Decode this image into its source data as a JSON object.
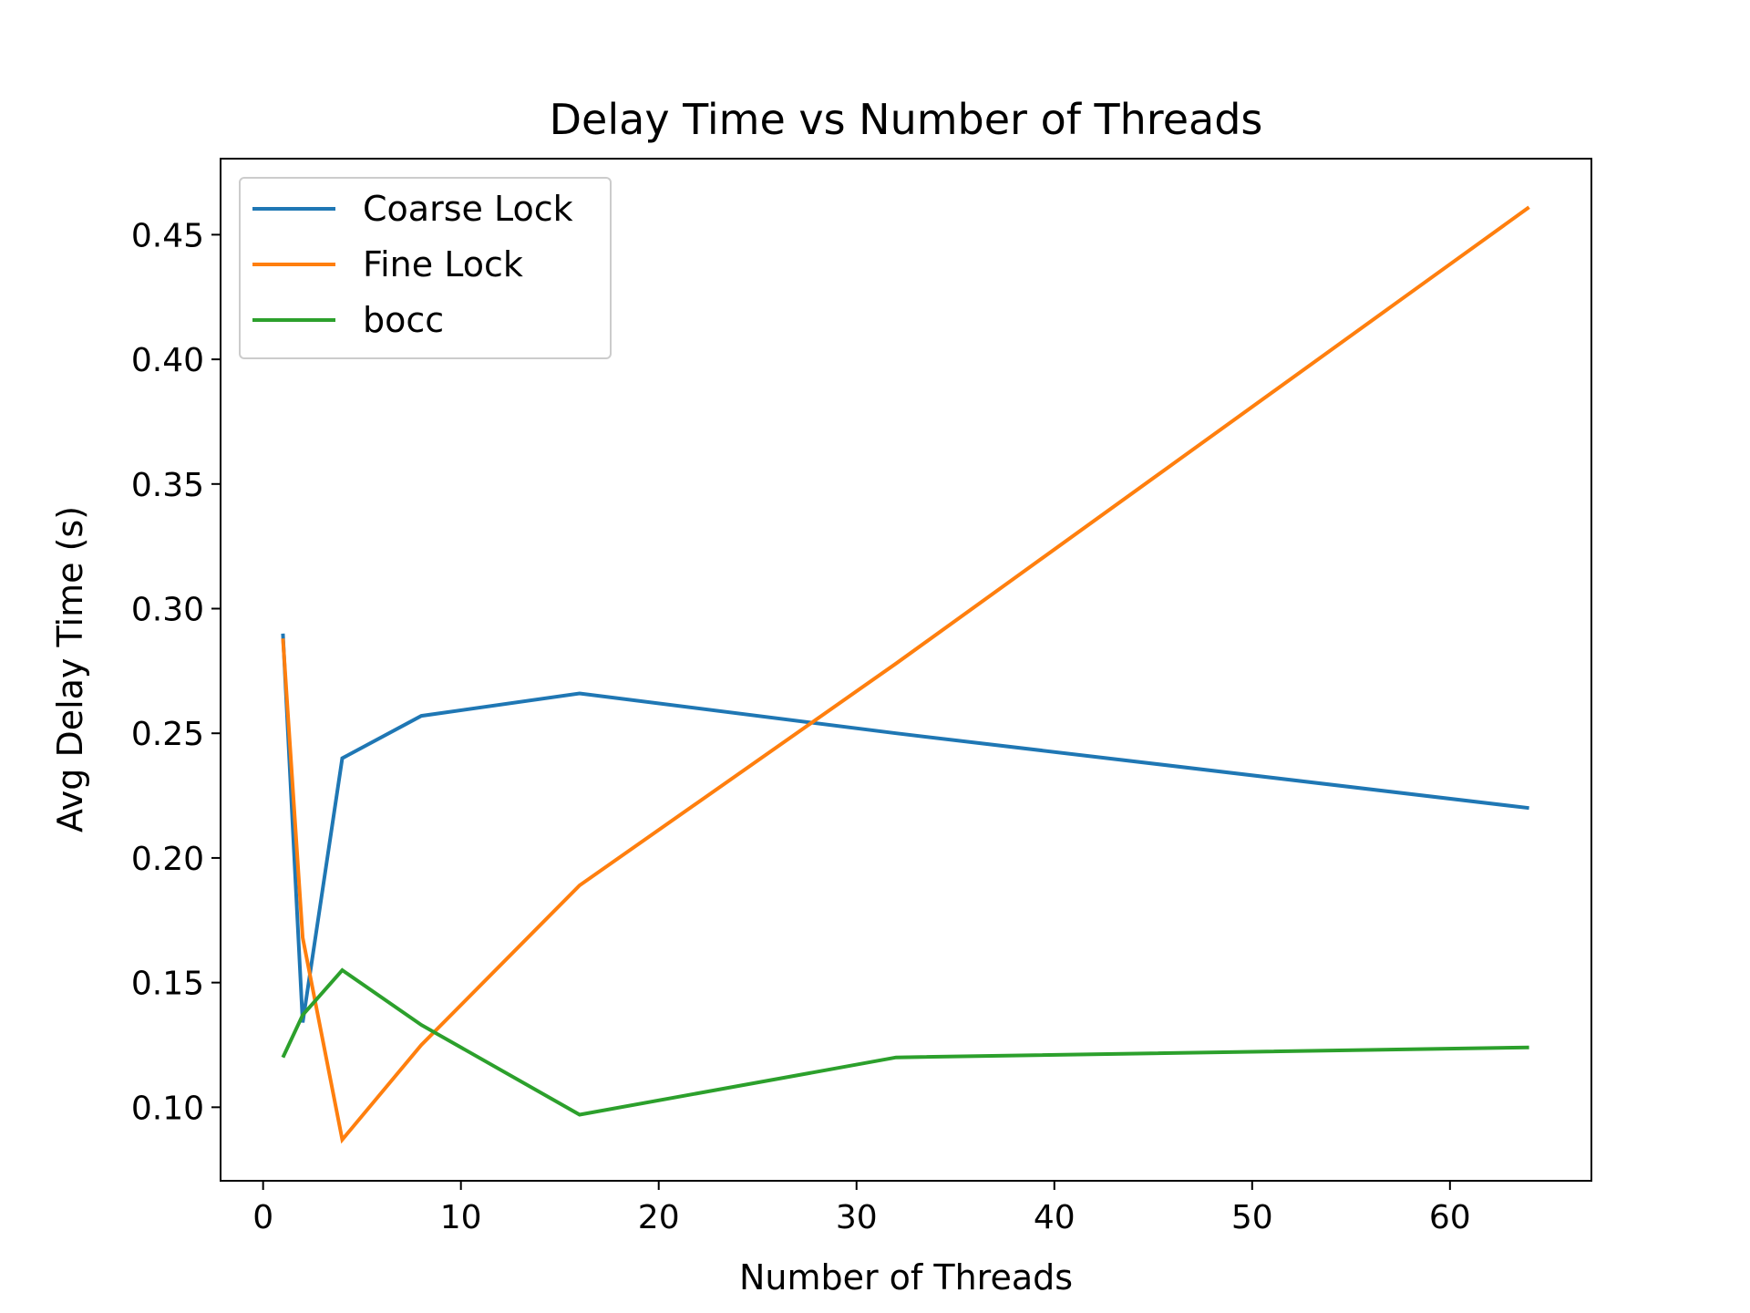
{
  "chart_data": {
    "type": "line",
    "title": "Delay Time vs Number of Threads",
    "xlabel": "Number of Threads",
    "ylabel": "Avg Delay Time (s)",
    "xlim": [
      -2.15,
      67.15
    ],
    "ylim": [
      0.0705,
      0.4805
    ],
    "xticks": [
      0,
      10,
      20,
      30,
      40,
      50,
      60
    ],
    "yticks": [
      0.1,
      0.15,
      0.2,
      0.25,
      0.3,
      0.35,
      0.4,
      0.45
    ],
    "xtick_labels": [
      "0",
      "10",
      "20",
      "30",
      "40",
      "50",
      "60"
    ],
    "ytick_labels": [
      "0.10",
      "0.15",
      "0.20",
      "0.25",
      "0.30",
      "0.35",
      "0.40",
      "0.45"
    ],
    "grid": false,
    "legend_position": "top-left",
    "x": [
      1,
      2,
      4,
      8,
      16,
      32,
      64
    ],
    "series": [
      {
        "name": "Coarse Lock",
        "color": "#1f77b4",
        "values": [
          0.29,
          0.134,
          0.24,
          0.257,
          0.266,
          0.25,
          0.22
        ]
      },
      {
        "name": "Fine Lock",
        "color": "#ff7f0e",
        "values": [
          0.288,
          0.168,
          0.087,
          0.125,
          0.189,
          0.278,
          0.461
        ]
      },
      {
        "name": "bocc",
        "color": "#2ca02c",
        "values": [
          0.12,
          0.137,
          0.155,
          0.133,
          0.097,
          0.12,
          0.124
        ]
      }
    ]
  }
}
